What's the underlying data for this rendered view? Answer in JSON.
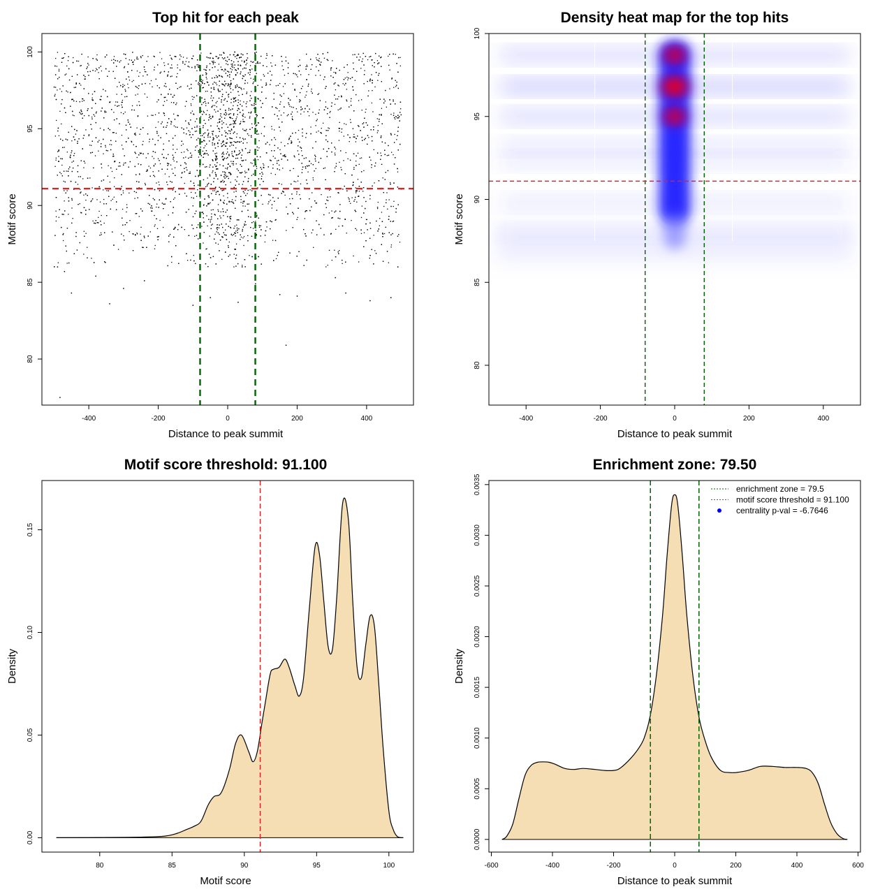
{
  "chart_data": [
    {
      "id": "scatter",
      "type": "scatter",
      "title": "Top hit for each peak",
      "xlabel": "Distance to peak summit",
      "ylabel": "Motif score",
      "xlim": [
        -535,
        535
      ],
      "ylim": [
        77.0,
        101.2
      ],
      "xticks": [
        -400,
        -200,
        0,
        200,
        400
      ],
      "xtick_labels": [
        "-400",
        "-200",
        "0",
        "200",
        "400"
      ],
      "yticks": [
        80,
        85,
        90,
        95,
        100
      ],
      "ytick_labels": [
        "80",
        "85",
        "90",
        "95",
        "100"
      ],
      "hlines": [
        {
          "y": 91.1,
          "color": "#d62728",
          "style": "dashed"
        }
      ],
      "vlines": [
        {
          "x": -79.5,
          "color": "#006400",
          "style": "dashed"
        },
        {
          "x": 79.5,
          "color": "#006400",
          "style": "dashed"
        }
      ],
      "x_range_points": [
        -500,
        500
      ],
      "sample_points_note": "",
      "outliers": [
        [
          -483,
          77.5
        ],
        [
          168,
          80.9
        ],
        [
          -450,
          84.3
        ],
        [
          -340,
          83.6
        ],
        [
          -300,
          84.6
        ],
        [
          -240,
          85.1
        ],
        [
          -100,
          83.5
        ],
        [
          -50,
          84.0
        ],
        [
          30,
          83.7
        ],
        [
          80,
          84.9
        ],
        [
          150,
          84.2
        ],
        [
          200,
          84.1
        ],
        [
          340,
          84.3
        ],
        [
          410,
          83.8
        ],
        [
          470,
          84.0
        ],
        [
          -490,
          86.0
        ],
        [
          -470,
          85.7
        ],
        [
          420,
          86.2
        ],
        [
          490,
          86.0
        ],
        [
          -380,
          85.4
        ],
        [
          310,
          85.3
        ]
      ]
    },
    {
      "id": "heatmap",
      "type": "heatmap",
      "title": "Density heat map for the top hits",
      "xlabel": "Distance to peak summit",
      "ylabel": "Motif score",
      "xlim": [
        -500,
        500
      ],
      "ylim": [
        77.6,
        100
      ],
      "xticks": [
        -400,
        -200,
        0,
        200,
        400
      ],
      "xtick_labels": [
        "-400",
        "-200",
        "0",
        "200",
        "400"
      ],
      "yticks": [
        80,
        85,
        90,
        95,
        100
      ],
      "ytick_labels": [
        "80",
        "85",
        "90",
        "95",
        "100"
      ],
      "hlines": [
        {
          "y": 91.1,
          "color": "#d62728",
          "style": "dashed"
        }
      ],
      "vlines": [
        {
          "x": -79.5,
          "color": "#006400",
          "style": "dashed"
        },
        {
          "x": 79.5,
          "color": "#006400",
          "style": "dashed"
        }
      ],
      "score_bands": [
        {
          "y": 98.7,
          "strength": 0.55
        },
        {
          "y": 96.8,
          "strength": 0.75
        },
        {
          "y": 95.0,
          "strength": 0.55
        },
        {
          "y": 93.2,
          "strength": 0.35
        },
        {
          "y": 92.3,
          "strength": 0.3
        },
        {
          "y": 89.8,
          "strength": 0.3
        },
        {
          "y": 88.0,
          "strength": 0.12
        }
      ],
      "hotspots": [
        {
          "x": 0,
          "y": 98.7,
          "level": "high"
        },
        {
          "x": 0,
          "y": 96.8,
          "level": "peak"
        },
        {
          "x": 0,
          "y": 95.0,
          "level": "high"
        }
      ]
    },
    {
      "id": "score-density",
      "type": "area",
      "title": "Motif score threshold: 91.100",
      "xlabel": "Motif score",
      "ylabel": "Density",
      "xlim": [
        76.0,
        101.7
      ],
      "ylim": [
        -0.007,
        0.174
      ],
      "xticks": [
        80,
        85,
        90,
        95,
        100
      ],
      "xtick_labels": [
        "80",
        "85",
        "90",
        "95",
        "100"
      ],
      "yticks": [
        0.0,
        0.05,
        0.1,
        0.15
      ],
      "ytick_labels": [
        "0.00",
        "0.05",
        "0.10",
        "0.15"
      ],
      "fill": "#f5deb3",
      "vlines": [
        {
          "x": 91.1,
          "color": "#d62728",
          "style": "dashed"
        }
      ],
      "x": [
        77.0,
        80.0,
        83.0,
        84.5,
        85.3,
        86.0,
        86.5,
        87.0,
        87.5,
        87.9,
        88.3,
        88.6,
        89.0,
        89.4,
        89.8,
        90.3,
        90.6,
        90.9,
        91.2,
        91.5,
        91.8,
        92.0,
        92.4,
        92.8,
        93.1,
        93.5,
        93.8,
        94.1,
        94.5,
        94.9,
        95.2,
        95.5,
        95.8,
        96.1,
        96.4,
        96.8,
        97.2,
        97.5,
        97.8,
        98.1,
        98.4,
        98.7,
        99.0,
        99.3,
        99.6,
        100.0,
        100.3,
        100.6,
        101.0
      ],
      "values": [
        0.0,
        0.0001,
        0.0003,
        0.0008,
        0.002,
        0.004,
        0.0055,
        0.008,
        0.016,
        0.02,
        0.021,
        0.025,
        0.034,
        0.046,
        0.05,
        0.042,
        0.037,
        0.042,
        0.055,
        0.068,
        0.08,
        0.082,
        0.083,
        0.087,
        0.083,
        0.074,
        0.069,
        0.078,
        0.112,
        0.142,
        0.138,
        0.115,
        0.093,
        0.092,
        0.118,
        0.163,
        0.155,
        0.115,
        0.083,
        0.078,
        0.094,
        0.108,
        0.103,
        0.075,
        0.044,
        0.013,
        0.004,
        0.0005,
        0.0
      ]
    },
    {
      "id": "distance-density",
      "type": "area",
      "title": "Enrichment zone: 79.50",
      "xlabel": "Distance to peak summit",
      "ylabel": "Density",
      "xlim": [
        -608,
        608
      ],
      "ylim": [
        -0.000125,
        0.00354
      ],
      "xticks": [
        -600,
        -400,
        -200,
        0,
        200,
        400,
        600
      ],
      "xtick_labels": [
        "-600",
        "-400",
        "-200",
        "0",
        "200",
        "400",
        "600"
      ],
      "yticks": [
        0.0,
        0.0005,
        0.001,
        0.0015,
        0.002,
        0.0025,
        0.003,
        0.0035
      ],
      "ytick_labels": [
        "0.0000",
        "0.0005",
        "0.0010",
        "0.0015",
        "0.0020",
        "0.0025",
        "0.0030",
        "0.0035"
      ],
      "fill": "#f5deb3",
      "vlines": [
        {
          "x": -79.5,
          "color": "#006400",
          "style": "dashed"
        },
        {
          "x": 79.5,
          "color": "#006400",
          "style": "dashed"
        }
      ],
      "x": [
        -565,
        -550,
        -530,
        -510,
        -490,
        -470,
        -450,
        -430,
        -410,
        -390,
        -360,
        -330,
        -300,
        -260,
        -230,
        -200,
        -180,
        -150,
        -120,
        -100,
        -80,
        -60,
        -40,
        -25,
        -10,
        0,
        10,
        25,
        40,
        60,
        80,
        100,
        120,
        150,
        180,
        200,
        240,
        280,
        320,
        360,
        400,
        430,
        450,
        470,
        490,
        510,
        530,
        550,
        565
      ],
      "values": [
        0.0,
        3e-05,
        0.00015,
        0.0004,
        0.00063,
        0.00073,
        0.00076,
        0.000765,
        0.00076,
        0.00074,
        0.0007,
        0.00069,
        0.0007,
        0.00069,
        0.00068,
        0.00068,
        0.0007,
        0.00078,
        0.00089,
        0.001,
        0.00122,
        0.00162,
        0.0022,
        0.0028,
        0.0033,
        0.0034,
        0.0033,
        0.0028,
        0.0022,
        0.0016,
        0.0012,
        0.00097,
        0.00081,
        0.00068,
        0.00066,
        0.00066,
        0.00068,
        0.00072,
        0.00072,
        0.00071,
        0.00071,
        0.0007,
        0.00066,
        0.00055,
        0.00035,
        0.00017,
        6e-05,
        1e-05,
        0.0
      ],
      "legend": {
        "position": "top-right",
        "entries": [
          {
            "label": "enrichment zone = 79.5",
            "color": "#006400",
            "symbol": "dotted-line"
          },
          {
            "label": "motif score threshold = 91.100",
            "color": "#d62728",
            "symbol": "dotted-line"
          },
          {
            "label": "centrality p-val = -6.7646",
            "color": "#0000ff",
            "symbol": "dot"
          }
        ]
      }
    }
  ]
}
